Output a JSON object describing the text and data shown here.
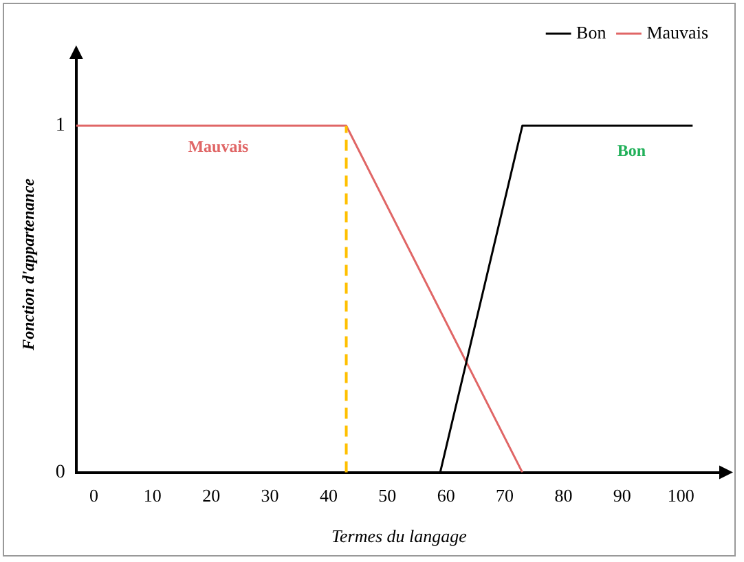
{
  "chart_data": {
    "type": "line",
    "xlabel": "Termes du langage",
    "ylabel": "Fonction d'appartenance",
    "xlim": [
      -3,
      107
    ],
    "xticks": [
      0,
      10,
      20,
      30,
      40,
      50,
      60,
      70,
      80,
      90,
      100
    ],
    "ylim": [
      0,
      1.2
    ],
    "yticks": [
      0,
      1
    ],
    "series": [
      {
        "name": "Bon",
        "color": "#000000",
        "x": [
          59,
          73,
          102
        ],
        "values": [
          0,
          1,
          1
        ]
      },
      {
        "name": "Mauvais",
        "color": "#e06666",
        "x": [
          -3,
          43,
          73
        ],
        "values": [
          1,
          1,
          0
        ]
      }
    ],
    "ref_lines": [
      {
        "axis": "x",
        "value": 43,
        "color": "#ffc000",
        "line_style": "dashed"
      }
    ],
    "annotations": [
      "Mauvais",
      "Bon"
    ],
    "legend": "top right",
    "grid": false,
    "marker": "none",
    "line_style": "solid"
  }
}
